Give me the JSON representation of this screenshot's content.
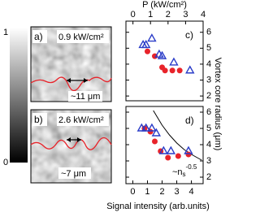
{
  "colorbar": {
    "top": "1",
    "bottom": "0"
  },
  "images": [
    {
      "label": "a)",
      "power": "0.9 kW/cm²",
      "size": "~11 μm"
    },
    {
      "label": "b)",
      "power": "2.6 kW/cm²",
      "size": "~7 μm"
    }
  ],
  "chart_data": [
    {
      "type": "scatter",
      "panel_label": "c)",
      "x2_label": "P (kW/cm²)",
      "y_label": "Vortex core radius (μm)",
      "xlim": [
        -0.47,
        4.8
      ],
      "x2lim": [
        -0.4,
        4.0
      ],
      "x2ticks": [
        0,
        1,
        2,
        3,
        4
      ],
      "ylim": [
        1.7,
        6.7
      ],
      "yticks": [
        2,
        3,
        4,
        5,
        6
      ],
      "series": [
        {
          "marker": "circle",
          "color": "#e8232a",
          "x": [
            1.0,
            1.5,
            2.0,
            2.2,
            2.7,
            3.2
          ],
          "values": [
            4.8,
            4.5,
            3.8,
            3.6,
            3.6,
            3.6
          ]
        },
        {
          "marker": "triangle",
          "color": "#2a3cc8",
          "x": [
            0.7,
            0.9,
            1.3,
            1.8,
            2.0,
            2.8,
            3.9
          ],
          "values": [
            5.2,
            5.2,
            5.6,
            4.6,
            4.5,
            4.1,
            3.6
          ]
        }
      ]
    },
    {
      "type": "scatter",
      "panel_label": "d)",
      "x_label": "Signal intensity (arb.units)",
      "xlim": [
        -0.47,
        4.8
      ],
      "xticks": [
        0,
        1,
        2,
        3,
        4
      ],
      "ylim": [
        1.6,
        6.35
      ],
      "yticks": [
        2,
        3,
        4,
        5,
        6
      ],
      "annotation": {
        "text": "~n",
        "sub": "s",
        "sup": "-0.5"
      },
      "series": [
        {
          "marker": "line",
          "color": "#000000",
          "x": [
            1.4,
            2.0,
            2.5,
            3.0,
            3.5,
            4.0,
            4.7
          ],
          "values": [
            6.1,
            5.2,
            4.6,
            4.1,
            3.7,
            3.4,
            3.05
          ]
        },
        {
          "marker": "circle",
          "color": "#e8232a",
          "x": [
            0.8,
            1.2,
            1.5,
            1.9,
            2.4,
            3.1,
            3.8
          ],
          "values": [
            5.0,
            4.8,
            4.2,
            3.6,
            3.2,
            3.3,
            3.4
          ]
        },
        {
          "marker": "triangle",
          "color": "#2a3cc8",
          "x": [
            0.6,
            0.9,
            1.3,
            1.6,
            2.1,
            2.6,
            3.8
          ],
          "values": [
            5.0,
            5.0,
            5.0,
            4.7,
            3.6,
            3.6,
            3.6
          ]
        }
      ]
    }
  ]
}
